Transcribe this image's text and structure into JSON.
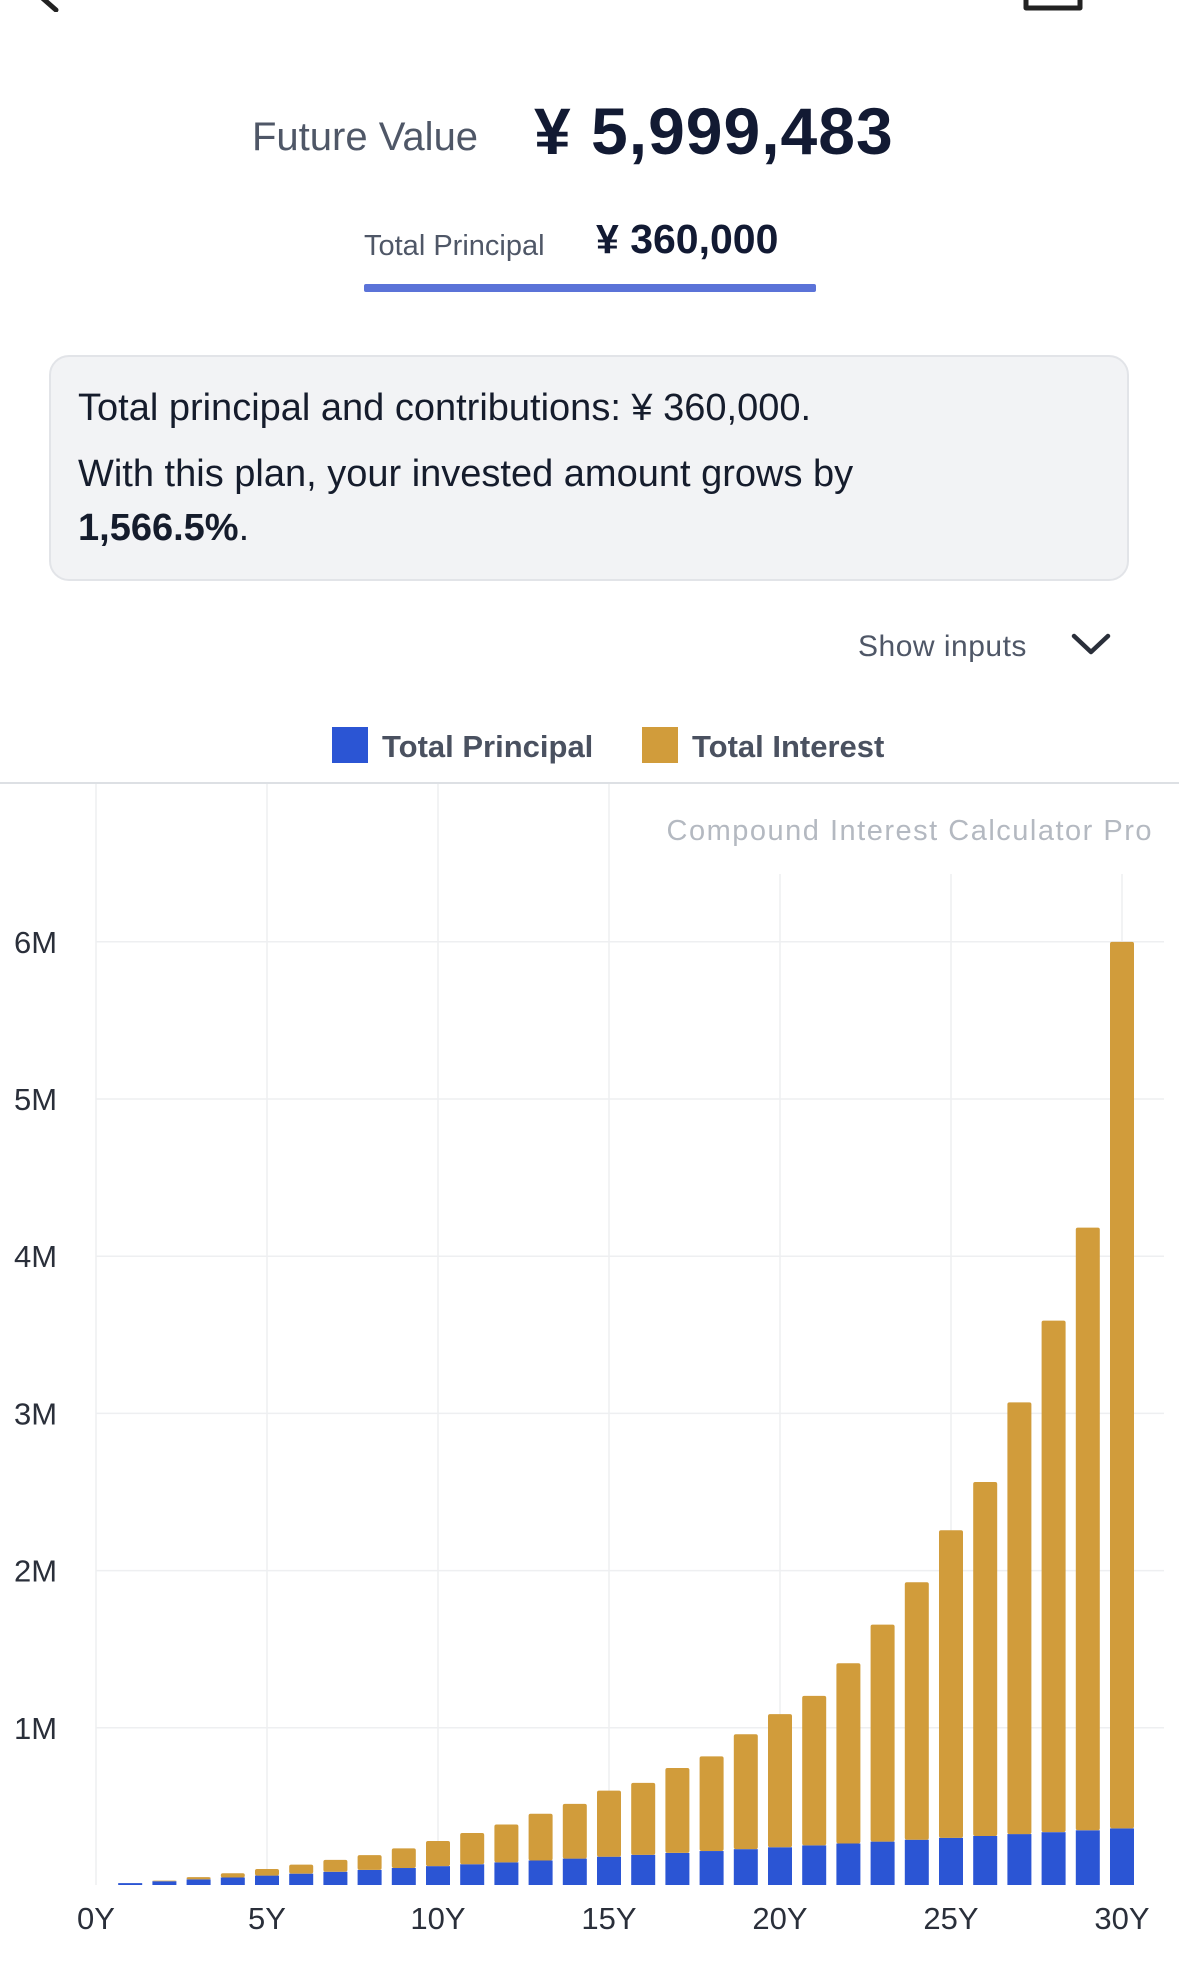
{
  "header": {
    "future_value_label": "Future Value",
    "future_value": "¥ 5,999,483"
  },
  "tab": {
    "label": "Total Principal",
    "value": "¥ 360,000"
  },
  "summary": {
    "line1": "Total principal and contributions: ¥ 360,000.",
    "line2": "With this plan, your invested amount grows by",
    "growth": "1,566.5%",
    "growth_suffix": "."
  },
  "show_inputs_label": "Show inputs",
  "legend": [
    {
      "label": "Total Principal",
      "color": "#2b55d4"
    },
    {
      "label": "Total Interest",
      "color": "#d19c3b"
    }
  ],
  "watermark": "Compound Interest Calculator Pro",
  "colors": {
    "principal": "#2b55d4",
    "interest": "#d19c3b",
    "accent": "#5b73d8"
  },
  "chart_data": {
    "type": "bar",
    "stacked": true,
    "x_tick_labels": [
      "0Y",
      "5Y",
      "10Y",
      "15Y",
      "20Y",
      "25Y",
      "30Y"
    ],
    "y_tick_labels": [
      "1M",
      "2M",
      "3M",
      "4M",
      "5M",
      "6M"
    ],
    "y_ticks": [
      1000000,
      2000000,
      3000000,
      4000000,
      5000000,
      6000000
    ],
    "ylim": [
      0,
      6900000
    ],
    "x": [
      1,
      2,
      3,
      4,
      5,
      6,
      7,
      8,
      9,
      10,
      11,
      12,
      13,
      14,
      15,
      16,
      17,
      18,
      19,
      20,
      21,
      22,
      23,
      24,
      25,
      26,
      27,
      28,
      29,
      30
    ],
    "series": [
      {
        "name": "Total Principal",
        "color": "#2b55d4",
        "values": [
          12000,
          24000,
          36000,
          48000,
          60000,
          72000,
          84000,
          96000,
          108000,
          120000,
          132000,
          144000,
          156000,
          168000,
          180000,
          192000,
          204000,
          216000,
          228000,
          240000,
          252000,
          264000,
          276000,
          288000,
          300000,
          312000,
          324000,
          336000,
          348000,
          360000
        ]
      },
      {
        "name": "Total Interest",
        "color": "#d19c3b",
        "values": [
          0,
          4000,
          14000,
          27000,
          42000,
          58000,
          76000,
          94000,
          125000,
          160000,
          199000,
          241000,
          297000,
          348000,
          420000,
          458000,
          540000,
          602000,
          731000,
          847000,
          951000,
          1147000,
          1380000,
          1638000,
          1957000,
          2252000,
          2746000,
          3254000,
          3834000,
          5639483
        ]
      }
    ],
    "grid": true
  }
}
